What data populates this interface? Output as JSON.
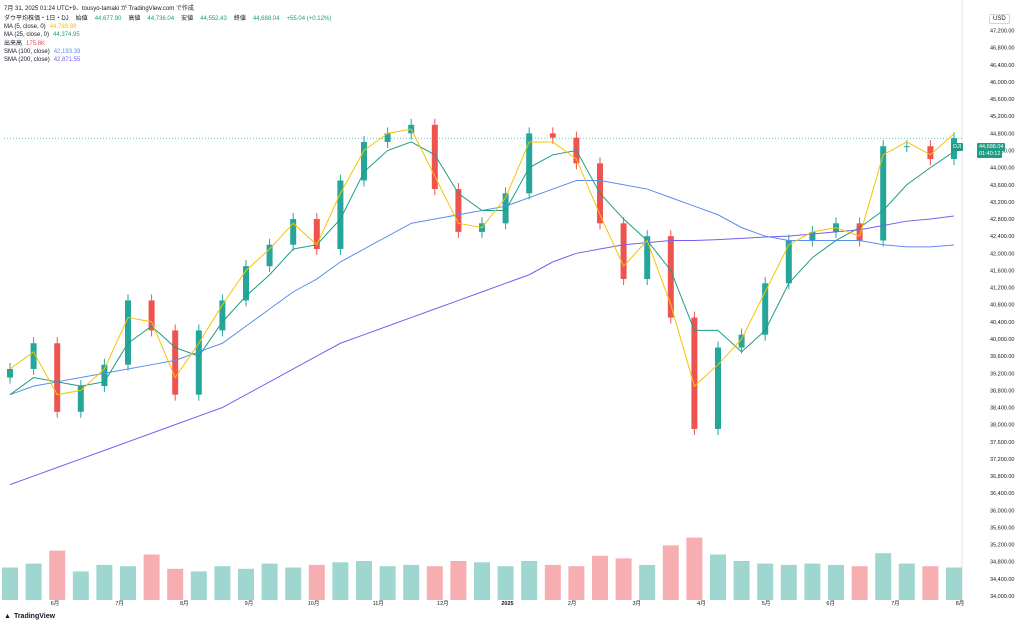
{
  "header": {
    "stamp": "7月 31, 2025 01:24 UTC+9、tousyo-tamaki が TradingView.com で作成",
    "title": "ダウ平均株価・1日・DJ",
    "open_label": "始値",
    "open": "44,677.90",
    "high_label": "高値",
    "high": "44,736.04",
    "low_label": "安値",
    "low": "44,552.43",
    "close_label": "終値",
    "close": "44,688.04",
    "change": "+55.04 (+0.12%)"
  },
  "indicators": [
    {
      "label": "MA (5, close, 0)",
      "value": "44,789.88",
      "color": "#f5c400"
    },
    {
      "label": "MA (25, close, 0)",
      "value": "44,374.95",
      "color": "#1e9c84"
    },
    {
      "label": "出来高",
      "value": "175.8K",
      "color": "#e8474b"
    },
    {
      "label": "SMA (100, close)",
      "value": "42,193.39",
      "color": "#5b8def"
    },
    {
      "label": "SMA (200, close)",
      "value": "42,871.55",
      "color": "#7b5cf0"
    }
  ],
  "price_axis": {
    "currency": "USD",
    "ticks": [
      "47,200.00",
      "46,800.00",
      "46,400.00",
      "46,000.00",
      "45,600.00",
      "45,200.00",
      "44,800.00",
      "44,400.00",
      "44,000.00",
      "43,600.00",
      "43,200.00",
      "42,800.00",
      "42,400.00",
      "42,000.00",
      "41,600.00",
      "41,200.00",
      "40,800.00",
      "40,400.00",
      "40,000.00",
      "39,600.00",
      "39,200.00",
      "38,800.00",
      "38,400.00",
      "38,000.00",
      "37,600.00",
      "37,200.00",
      "36,800.00",
      "36,400.00",
      "36,000.00",
      "35,600.00",
      "35,200.00",
      "34,800.00",
      "34,400.00",
      "34,000.00"
    ],
    "last_symbol": "DJI",
    "last_price": "44,688.04",
    "countdown": "01:40:12"
  },
  "time_axis": {
    "labels": [
      "6月",
      "7月",
      "8月",
      "9月",
      "10月",
      "11月",
      "12月",
      "2025",
      "2月",
      "3月",
      "4月",
      "5月",
      "6月",
      "7月",
      "8月"
    ]
  },
  "brand": "TradingView",
  "colors": {
    "up": "#26a69a",
    "down": "#ef5350",
    "ma5": "#f5c400",
    "ma25": "#1e9c84",
    "sma100": "#5b8def",
    "sma200": "#7b5cf0"
  },
  "chart_data": {
    "type": "candlestick",
    "symbol": "DJI",
    "timeframe": "1日",
    "ylim": [
      34000,
      47400
    ],
    "x": [
      "2024-05-15",
      "2024-06-01",
      "2024-06-15",
      "2024-07-01",
      "2024-07-15",
      "2024-07-25",
      "2024-08-05",
      "2024-08-15",
      "2024-08-30",
      "2024-09-10",
      "2024-09-20",
      "2024-10-01",
      "2024-10-15",
      "2024-10-31",
      "2024-11-06",
      "2024-11-15",
      "2024-11-25",
      "2024-12-04",
      "2024-12-15",
      "2024-12-31",
      "2025-01-10",
      "2025-01-20",
      "2025-01-30",
      "2025-02-10",
      "2025-02-20",
      "2025-03-05",
      "2025-03-13",
      "2025-03-25",
      "2025-04-03",
      "2025-04-08",
      "2025-04-15",
      "2025-04-25",
      "2025-05-05",
      "2025-05-15",
      "2025-05-30",
      "2025-06-10",
      "2025-06-20",
      "2025-07-01",
      "2025-07-10",
      "2025-07-20",
      "2025-07-30"
    ],
    "close": [
      39300,
      39900,
      38300,
      38900,
      39400,
      40900,
      40200,
      38700,
      40200,
      40900,
      41700,
      42200,
      42800,
      42100,
      43700,
      44600,
      44800,
      45000,
      43500,
      42500,
      42700,
      43400,
      44800,
      44700,
      44100,
      42700,
      41400,
      42400,
      40500,
      37900,
      39800,
      40100,
      41300,
      42300,
      42500,
      42700,
      42300,
      44500,
      44500,
      44200,
      44688
    ],
    "ma5": [
      39300,
      39700,
      38700,
      38800,
      39300,
      40500,
      40400,
      39100,
      39900,
      40800,
      41600,
      42100,
      42700,
      42200,
      43400,
      44400,
      44800,
      44900,
      43800,
      42700,
      42600,
      43300,
      44600,
      44600,
      44200,
      42900,
      41700,
      42300,
      40800,
      38900,
      39400,
      40000,
      41100,
      42200,
      42500,
      42600,
      42400,
      44300,
      44600,
      44300,
      44789
    ],
    "ma25": [
      38700,
      39100,
      39000,
      38900,
      39000,
      39900,
      40300,
      39800,
      39600,
      40400,
      41000,
      41500,
      42100,
      42200,
      42800,
      43900,
      44400,
      44600,
      44300,
      43400,
      43000,
      43000,
      44000,
      44300,
      44400,
      43400,
      42800,
      42300,
      41600,
      40200,
      40200,
      39700,
      40200,
      41300,
      41900,
      42300,
      42600,
      43000,
      43600,
      44000,
      44375
    ],
    "sma100": [
      38700,
      38900,
      39000,
      39100,
      39200,
      39300,
      39400,
      39500,
      39700,
      39900,
      40300,
      40700,
      41100,
      41400,
      41800,
      42100,
      42400,
      42700,
      42800,
      42900,
      43000,
      43100,
      43300,
      43500,
      43700,
      43700,
      43600,
      43500,
      43300,
      43100,
      42900,
      42600,
      42400,
      42300,
      42300,
      42300,
      42300,
      42200,
      42150,
      42150,
      42193
    ],
    "sma200": [
      36600,
      36800,
      37000,
      37200,
      37400,
      37600,
      37800,
      38000,
      38200,
      38400,
      38700,
      39000,
      39300,
      39600,
      39900,
      40100,
      40300,
      40500,
      40700,
      40900,
      41100,
      41300,
      41500,
      41800,
      42000,
      42100,
      42200,
      42250,
      42300,
      42300,
      42320,
      42350,
      42380,
      42400,
      42450,
      42500,
      42550,
      42650,
      42750,
      42800,
      42872
    ],
    "volume": [
      0.25,
      0.28,
      0.38,
      0.22,
      0.27,
      0.26,
      0.35,
      0.24,
      0.22,
      0.26,
      0.24,
      0.28,
      0.25,
      0.27,
      0.29,
      0.3,
      0.26,
      0.27,
      0.26,
      0.3,
      0.29,
      0.26,
      0.3,
      0.27,
      0.26,
      0.34,
      0.32,
      0.27,
      0.42,
      0.48,
      0.35,
      0.3,
      0.28,
      0.27,
      0.28,
      0.27,
      0.26,
      0.36,
      0.28,
      0.26,
      0.25
    ]
  }
}
